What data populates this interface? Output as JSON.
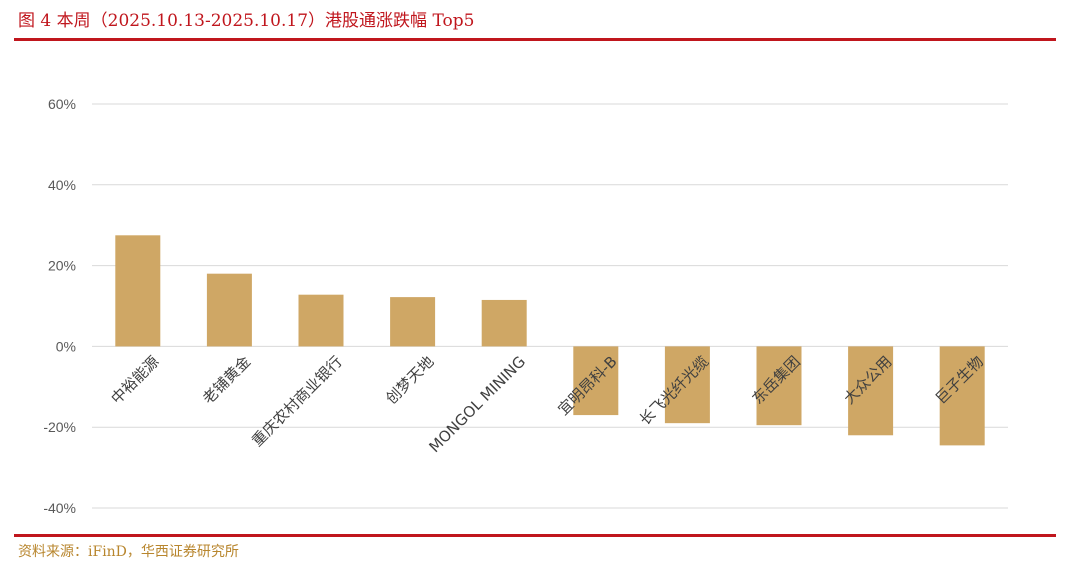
{
  "title": "图 4   本周（2025.10.13-2025.10.17）港股通涨跌幅 Top5",
  "source": "资料来源：iFinD，华西证券研究所",
  "colors": {
    "bar": "#cfa765",
    "grid": "#d9d9d9",
    "axis_text": "#595959",
    "accent": "#c0161d"
  },
  "chart_data": {
    "type": "bar",
    "categories": [
      "中裕能源",
      "老铺黄金",
      "重庆农村商业银行",
      "创梦天地",
      "MONGOL MINING",
      "宜明昂科-B",
      "长飞光纤光缆",
      "东岳集团",
      "大众公用",
      "巨子生物"
    ],
    "values": [
      27.5,
      18.0,
      12.8,
      12.2,
      11.5,
      -17.0,
      -19.0,
      -19.5,
      -22.0,
      -24.5
    ],
    "title": "",
    "xlabel": "",
    "ylabel": "",
    "ylim": [
      -40,
      60
    ],
    "yticks": [
      -40,
      -20,
      0,
      20,
      40,
      60
    ],
    "ytick_labels": [
      "-40%",
      "-20%",
      "0%",
      "20%",
      "40%",
      "60%"
    ],
    "grid": true,
    "legend": "none"
  }
}
